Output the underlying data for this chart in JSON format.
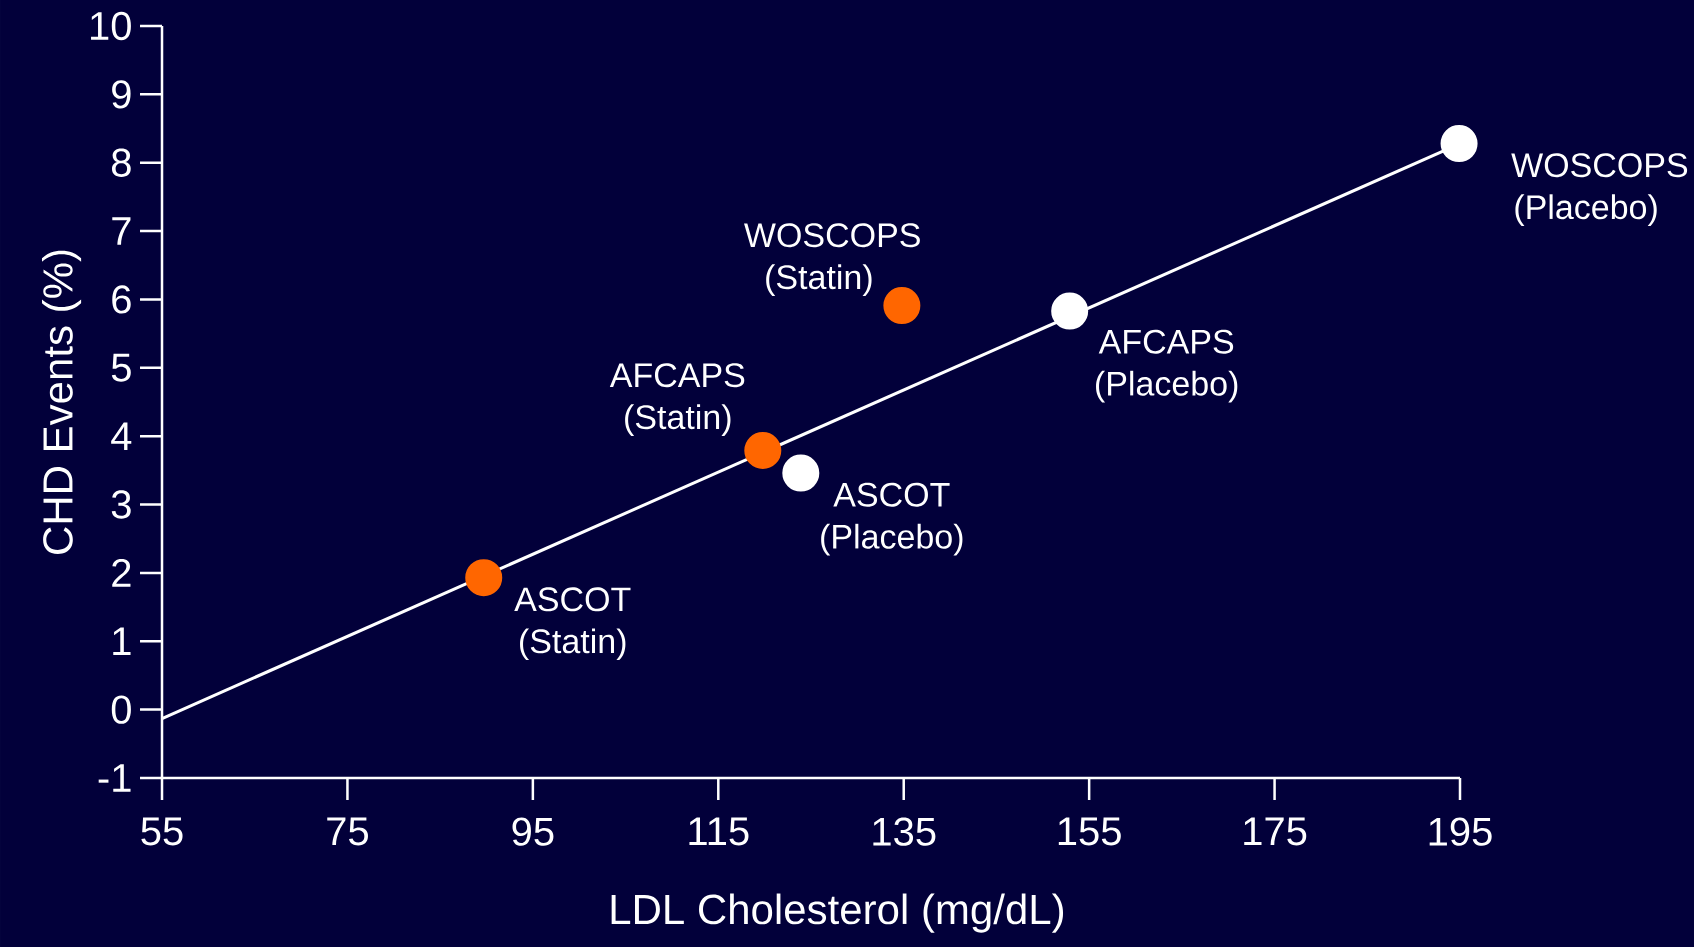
{
  "chart_data": {
    "type": "scatter",
    "xlabel": "LDL Cholesterol (mg/dL)",
    "ylabel": "CHD Events (%)",
    "xlim": [
      55,
      195
    ],
    "ylim": [
      -1,
      10
    ],
    "xticks": [
      55,
      75,
      95,
      115,
      135,
      155,
      175,
      195
    ],
    "yticks": [
      -1,
      0,
      1,
      2,
      3,
      4,
      5,
      6,
      7,
      8,
      9,
      10
    ],
    "grid": false,
    "series": [
      {
        "type": "line",
        "color": "#ffffff",
        "marker": "none",
        "x": [
          55,
          195
        ],
        "values": [
          -0.13,
          8.28
        ]
      },
      {
        "type": "scatter",
        "marker": "circle",
        "color": "#ff6600",
        "x": [
          89.7,
          119.8,
          134.8
        ],
        "values": [
          1.93,
          3.79,
          5.91
        ]
      },
      {
        "type": "scatter",
        "marker": "circle",
        "color": "#ffffff",
        "x": [
          123.9,
          152.9,
          194.9
        ],
        "values": [
          3.46,
          5.83,
          8.28
        ]
      }
    ],
    "annotations": [
      {
        "text": "ASCOT (Statin)",
        "x": 89.7,
        "y": 1.93
      },
      {
        "text": "AFCAPS (Statin)",
        "x": 119.8,
        "y": 3.79
      },
      {
        "text": "WOSCOPS (Statin)",
        "x": 134.8,
        "y": 5.91
      },
      {
        "text": "ASCOT (Placebo)",
        "x": 123.9,
        "y": 3.46
      },
      {
        "text": "AFCAPS (Placebo)",
        "x": 152.9,
        "y": 5.83
      },
      {
        "text": "WOSCOPS (Placebo)",
        "x": 194.9,
        "y": 8.28
      }
    ]
  }
}
